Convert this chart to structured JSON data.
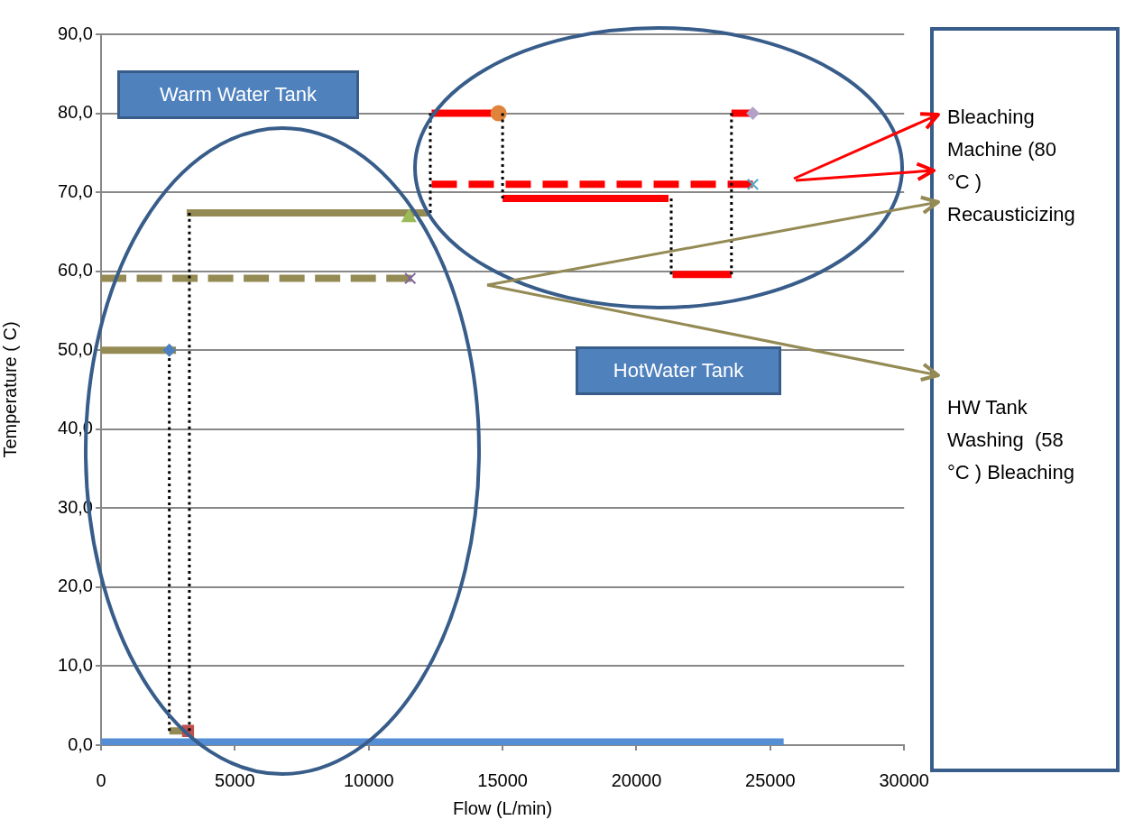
{
  "chart_data": {
    "type": "line",
    "xlabel": "Flow (L/min)",
    "ylabel": "Temperature ( C)",
    "xlim": [
      0,
      30000
    ],
    "xticks": [
      0,
      5000,
      10000,
      15000,
      20000,
      25000,
      30000
    ],
    "ylim": [
      0,
      90
    ],
    "yticks": [
      {
        "value": 0,
        "label": "0,0"
      },
      {
        "value": 10,
        "label": "10,0"
      },
      {
        "value": 20,
        "label": "20,0"
      },
      {
        "value": 30,
        "label": "30,0"
      },
      {
        "value": 40,
        "label": "40,0"
      },
      {
        "value": 50,
        "label": "50,0"
      },
      {
        "value": 60,
        "label": "60,0"
      },
      {
        "value": 70,
        "label": "70,0"
      },
      {
        "value": 80,
        "label": "80,0"
      },
      {
        "value": 90,
        "label": "90,0"
      }
    ],
    "grid": "y",
    "legend": false,
    "marker": "none",
    "annotations": [
      "Warm Water Tank",
      "HotWater Tank",
      "Bleaching Machine (80 °C ) Recausticizing",
      "HW Tank Washing  (58 °C ) Bleaching"
    ],
    "series": [
      {
        "type": "line",
        "color": "#558ed5",
        "x": [
          0,
          25500
        ],
        "values": [
          0.4,
          0.4
        ]
      },
      {
        "type": "line",
        "color": "#948a54",
        "x": [
          0,
          2800
        ],
        "values": [
          50,
          50
        ]
      },
      {
        "type": "line",
        "color": "#948a54",
        "x": [
          2550,
          3300
        ],
        "values": [
          1.8,
          1.8
        ]
      },
      {
        "type": "line",
        "color": "#948a54",
        "x": [
          3200,
          12200
        ],
        "values": [
          67.4,
          67.4
        ]
      },
      {
        "type": "line",
        "color": "#948a54",
        "line_style": "dashed",
        "x": [
          0,
          11600
        ],
        "values": [
          59.1,
          59.1
        ]
      },
      {
        "type": "line",
        "color": "#ff0000",
        "x": [
          12350,
          14850
        ],
        "values": [
          80,
          80
        ]
      },
      {
        "type": "line",
        "color": "#ff0000",
        "line_style": "dashed",
        "x": [
          12350,
          24350
        ],
        "values": [
          71,
          71
        ]
      },
      {
        "type": "line",
        "color": "#ff0000",
        "x": [
          15000,
          21200
        ],
        "values": [
          69.2,
          69.2
        ]
      },
      {
        "type": "line",
        "color": "#ff0000",
        "x": [
          21350,
          23550
        ],
        "values": [
          59.6,
          59.6
        ]
      },
      {
        "type": "line",
        "color": "#ff0000",
        "x": [
          23550,
          24300
        ],
        "values": [
          80,
          80
        ]
      },
      {
        "type": "line",
        "color": "#000000",
        "line_style": "dotted",
        "x": [
          2550,
          2550
        ],
        "values": [
          49,
          1.8
        ]
      },
      {
        "type": "line",
        "color": "#000000",
        "line_style": "dotted",
        "x": [
          3300,
          3300
        ],
        "values": [
          67.4,
          1.8
        ]
      },
      {
        "type": "line",
        "color": "#000000",
        "line_style": "dotted",
        "x": [
          12300,
          12300
        ],
        "values": [
          80,
          67.4
        ]
      },
      {
        "type": "line",
        "color": "#000000",
        "line_style": "dotted",
        "x": [
          15000,
          15000
        ],
        "values": [
          80,
          69.2
        ]
      },
      {
        "type": "line",
        "color": "#000000",
        "line_style": "dotted",
        "x": [
          21300,
          21300
        ],
        "values": [
          69.2,
          59.6
        ]
      },
      {
        "type": "line",
        "color": "#000000",
        "line_style": "dotted",
        "x": [
          23550,
          23550
        ],
        "values": [
          59.6,
          80
        ]
      },
      {
        "type": "scatter",
        "color": "#4f81bd",
        "marker": "diamond",
        "x": [
          2550
        ],
        "values": [
          50
        ]
      },
      {
        "type": "scatter",
        "color": "#c0504d",
        "marker": "square",
        "x": [
          3250
        ],
        "values": [
          1.8
        ]
      },
      {
        "type": "scatter",
        "color": "#9bbb59",
        "marker": "triangle",
        "x": [
          11500
        ],
        "values": [
          66.8
        ]
      },
      {
        "type": "scatter",
        "color": "#8064a2",
        "marker": "cross",
        "x": [
          11550
        ],
        "values": [
          59.1
        ]
      },
      {
        "type": "scatter",
        "color": "#e0843c",
        "marker": "circle",
        "x": [
          14850
        ],
        "values": [
          80
        ]
      },
      {
        "type": "scatter",
        "color": "#4bacc6",
        "marker": "cross",
        "x": [
          24350
        ],
        "values": [
          71
        ]
      },
      {
        "type": "scatter",
        "color": "#b3a2c7",
        "marker": "diamond",
        "x": [
          24350
        ],
        "values": [
          80
        ]
      }
    ]
  }
}
